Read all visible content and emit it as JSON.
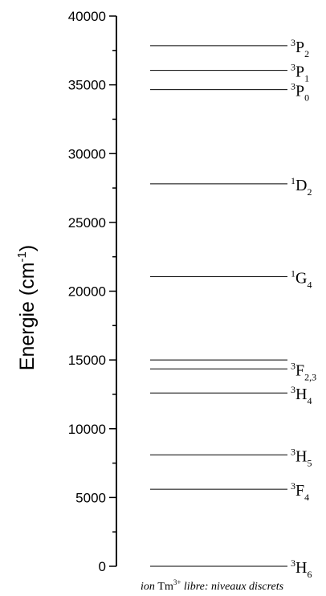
{
  "chart_data": {
    "type": "energy-level-diagram",
    "ylabel": "Energie (cm",
    "ylabel_sup": "-1",
    "ylabel_close": ")",
    "ylim": [
      0,
      40000
    ],
    "ytick_step": 5000,
    "yticks": [
      "0",
      "5000",
      "10000",
      "15000",
      "20000",
      "25000",
      "30000",
      "35000",
      "40000"
    ],
    "levels": [
      {
        "sup": "3",
        "letter": "H",
        "sub": "6",
        "energy": 0
      },
      {
        "sup": "3",
        "letter": "F",
        "sub": "4",
        "energy": 5600
      },
      {
        "sup": "3",
        "letter": "H",
        "sub": "5",
        "energy": 8100
      },
      {
        "sup": "3",
        "letter": "H",
        "sub": "4",
        "energy": 12600
      },
      {
        "sup": "3",
        "letter": "F",
        "sub": "2,3",
        "energy": 14350
      },
      {
        "sup": "",
        "letter": "",
        "sub": "",
        "energy": 15000
      },
      {
        "sup": "1",
        "letter": "G",
        "sub": "4",
        "energy": 21050
      },
      {
        "sup": "1",
        "letter": "D",
        "sub": "2",
        "energy": 27800
      },
      {
        "sup": "3",
        "letter": "P",
        "sub": "0",
        "energy": 34650
      },
      {
        "sup": "3",
        "letter": "P",
        "sub": "1",
        "energy": 36050
      },
      {
        "sup": "3",
        "letter": "P",
        "sub": "2",
        "energy": 37850
      }
    ],
    "caption": {
      "pre": "ion ",
      "ion": "Tm",
      "charge": "3+",
      "post": " libre: niveaux discrets"
    }
  }
}
